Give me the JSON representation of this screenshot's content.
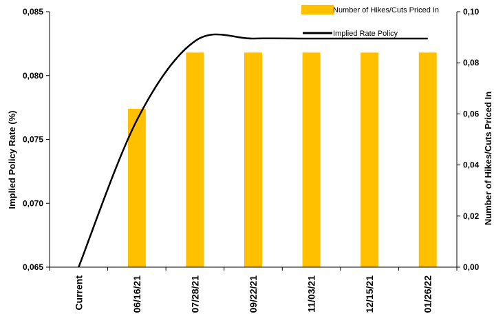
{
  "chart_data": {
    "type": "bar",
    "categories": [
      "Current",
      "06/16/21",
      "07/28/21",
      "09/22/21",
      "11/03/21",
      "12/15/21",
      "01/26/22"
    ],
    "series": [
      {
        "name": "Number of Hikes/Cuts Priced In",
        "type": "bar",
        "axis": "right",
        "color": "#FFC000",
        "values": [
          0.0,
          0.062,
          0.084,
          0.084,
          0.084,
          0.084,
          0.084
        ]
      },
      {
        "name": "Implied Rate Policy",
        "type": "line",
        "axis": "left",
        "color": "#000000",
        "values": [
          0.065,
          0.0765,
          0.0827,
          0.0829,
          0.0829,
          0.0829,
          0.0829
        ]
      }
    ],
    "ylabel": "Implied Policy Rate (%)",
    "y2label": "Number of Hikes/Cuts Priced In",
    "ylim": [
      0.065,
      0.085
    ],
    "y2lim": [
      0.0,
      0.1
    ],
    "yticks": [
      "0,065",
      "0,070",
      "0,075",
      "0,080",
      "0,085"
    ],
    "y2ticks": [
      "0,00",
      "0,02",
      "0,04",
      "0,06",
      "0,08",
      "0,10"
    ],
    "grid": false,
    "legend_position": "top-right"
  }
}
